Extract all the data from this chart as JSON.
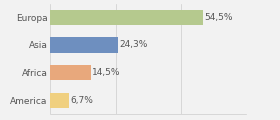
{
  "categories": [
    "Europa",
    "Asia",
    "Africa",
    "America"
  ],
  "values": [
    54.5,
    24.3,
    14.5,
    6.7
  ],
  "labels": [
    "54,5%",
    "24,3%",
    "14,5%",
    "6,7%"
  ],
  "colors": [
    "#b5c98e",
    "#6e8fbf",
    "#e8a87c",
    "#f0d080"
  ],
  "background_color": "#f2f2f2",
  "xlim": [
    0,
    70
  ],
  "label_fontsize": 6.5,
  "ylabel_fontsize": 6.5,
  "bar_height": 0.55,
  "grid_lines": [
    0,
    23.3,
    46.6,
    70
  ]
}
